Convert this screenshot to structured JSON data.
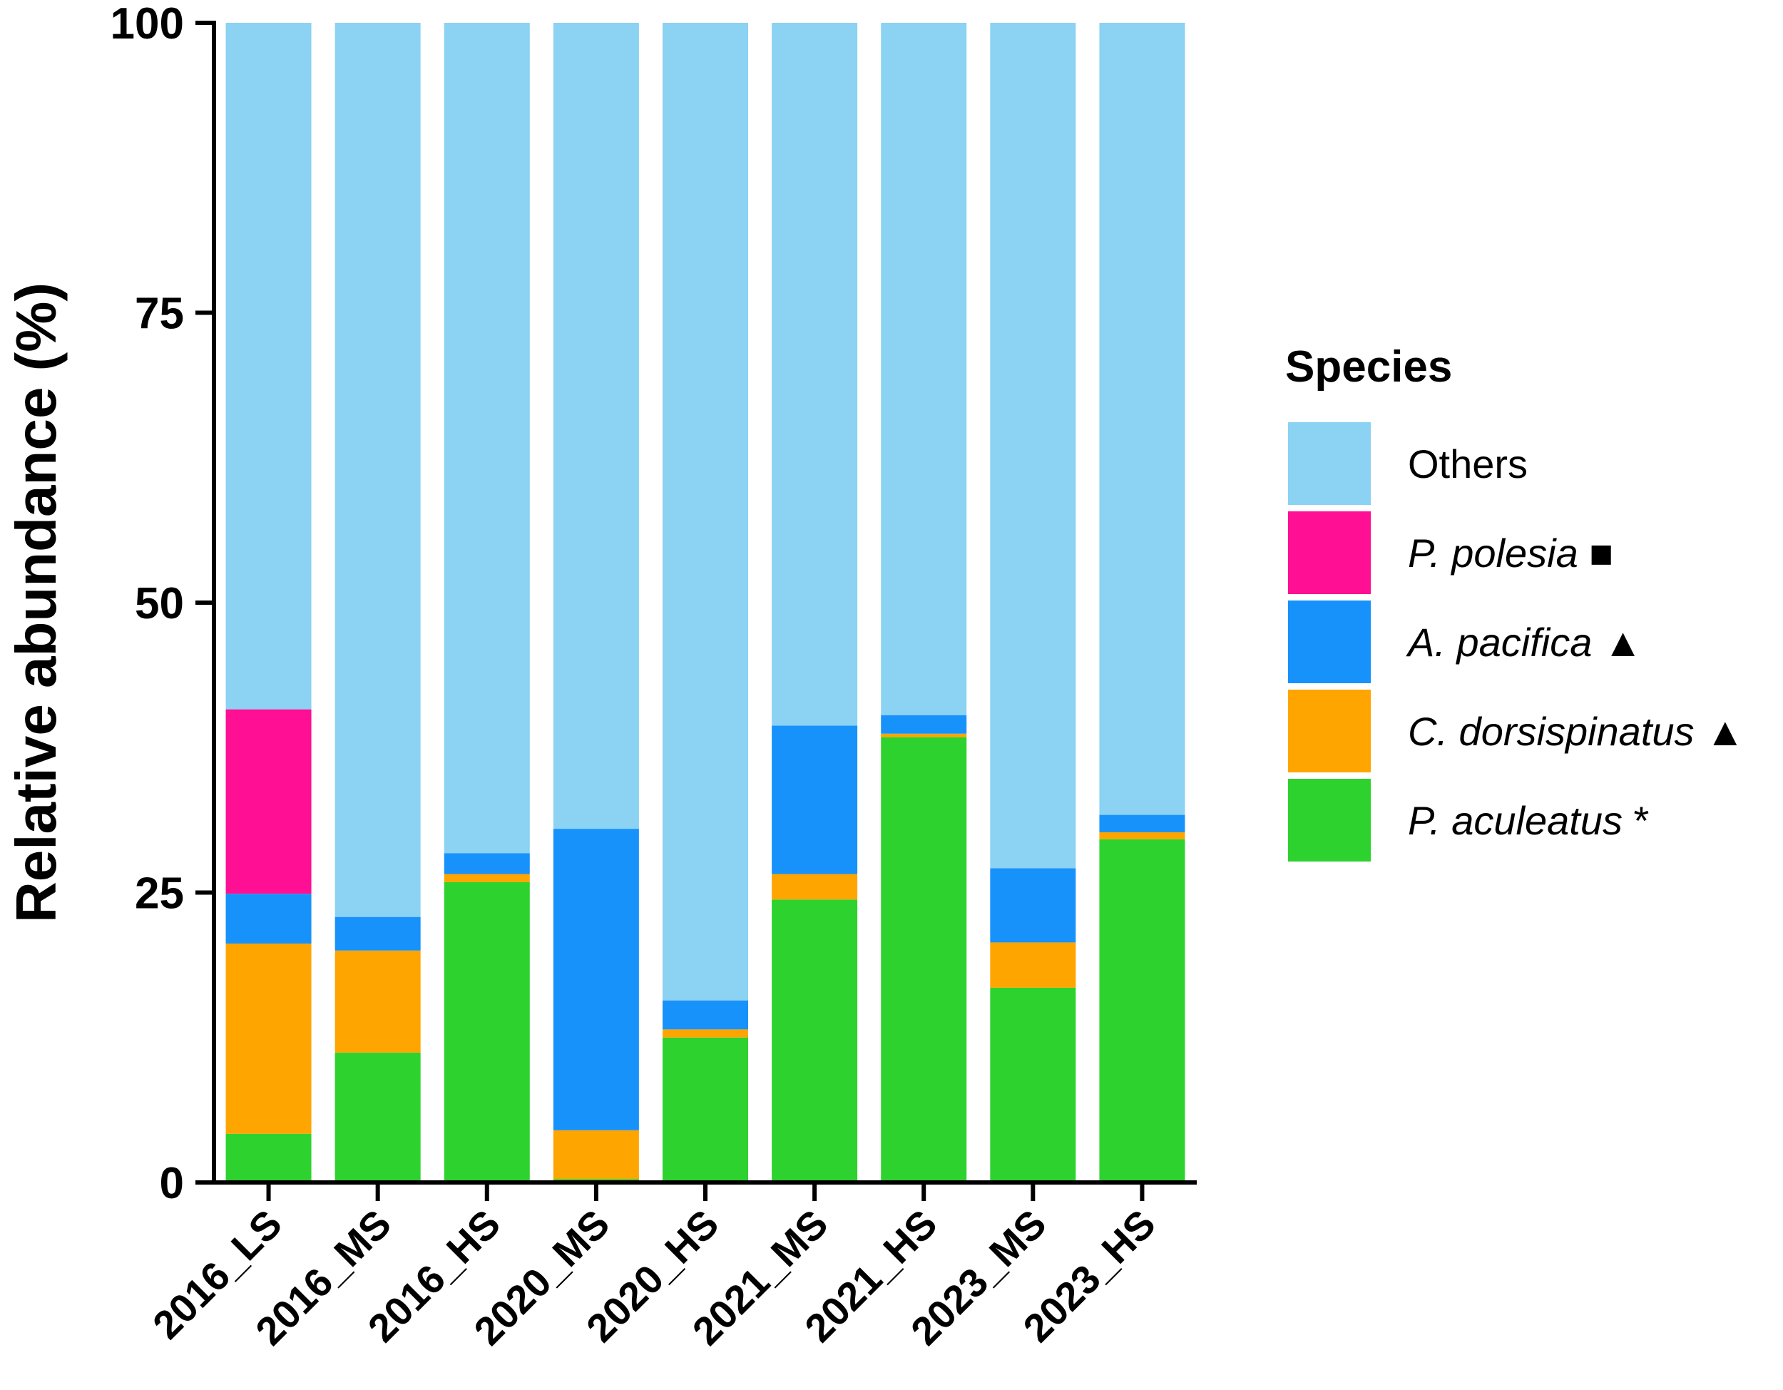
{
  "chart_data": {
    "type": "bar",
    "stacked": true,
    "ylabel": "Relative abundance (%)",
    "xlabel": "",
    "ylim": [
      0,
      100
    ],
    "yticks": [
      0,
      25,
      50,
      75,
      100
    ],
    "categories": [
      "2016_LS",
      "2016_MS",
      "2016_HS",
      "2020_MS",
      "2020_HS",
      "2021_MS",
      "2021_HS",
      "2023_MS",
      "2023_HS"
    ],
    "series": [
      {
        "name": "P. aculeatus",
        "mark": "*",
        "color": "#2ed22e",
        "values": [
          4.2,
          11.2,
          25.9,
          0.3,
          12.5,
          24.4,
          38.4,
          16.8,
          29.6
        ]
      },
      {
        "name": "C. dorsispinatus",
        "mark": "▲",
        "color": "#ffa500",
        "values": [
          16.4,
          8.8,
          0.7,
          4.2,
          0.7,
          2.2,
          0.3,
          3.9,
          0.6
        ]
      },
      {
        "name": "A. pacifica",
        "mark": "▲",
        "color": "#1892fb",
        "values": [
          4.3,
          2.9,
          1.8,
          26.0,
          2.5,
          12.8,
          1.6,
          6.4,
          1.5
        ]
      },
      {
        "name": "P. polesia",
        "mark": "■",
        "color": "#ff0f93",
        "values": [
          15.9,
          0,
          0,
          0,
          0,
          0,
          0,
          0,
          0
        ]
      },
      {
        "name": "Others",
        "mark": "",
        "color": "#8bd2f3",
        "values": [
          59.2,
          77.1,
          71.6,
          69.5,
          84.3,
          60.6,
          59.7,
          72.9,
          68.3
        ]
      }
    ],
    "legend": {
      "title": "Species",
      "position": "right",
      "order": [
        "Others",
        "P. polesia",
        "A. pacifica",
        "C. dorsispinatus",
        "P. aculeatus"
      ]
    }
  }
}
